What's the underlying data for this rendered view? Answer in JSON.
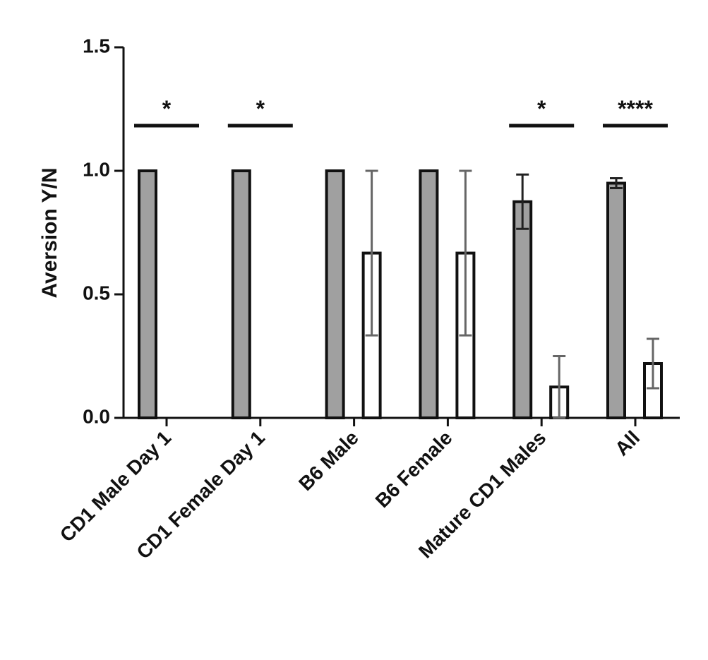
{
  "chart_data": {
    "type": "bar",
    "y_label": "Aversion Y/N",
    "categories": [
      "CD1 Male Day 1",
      "CD1 Female Day 1",
      "B6 Male",
      "B6 Female",
      "Mature CD1 Males",
      "All"
    ],
    "series": [
      {
        "color": "#a0a0a0",
        "values": [
          1,
          1,
          1,
          1,
          0.875,
          0.95
        ],
        "errors": [
          0,
          0,
          0,
          0,
          0.11,
          0.02
        ]
      },
      {
        "color": "#ffffff",
        "values": [
          0,
          0,
          0.667,
          0.667,
          0.125,
          0.22
        ],
        "errors": [
          0,
          0,
          0.333,
          0.333,
          0.125,
          0.1
        ]
      }
    ],
    "significance": [
      "*",
      "*",
      null,
      null,
      "*",
      "****"
    ],
    "ylim": [
      0,
      1.5
    ],
    "yticks": [
      {
        "value": 0,
        "label": "0.0"
      },
      {
        "value": 0.5,
        "label": "0.5"
      },
      {
        "value": 1,
        "label": "1.0"
      },
      {
        "value": 1.5,
        "label": "1.5"
      }
    ]
  }
}
